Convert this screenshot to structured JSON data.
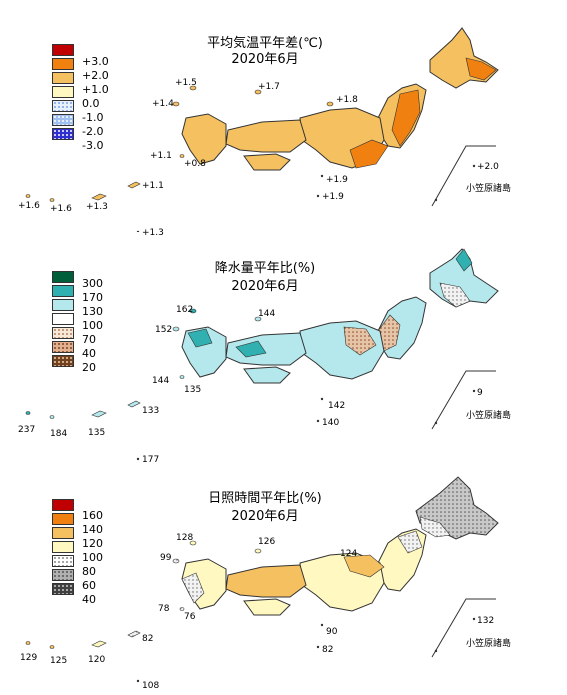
{
  "panels": [
    {
      "title_line1": "平均気温平年差(℃)",
      "title_line2": "2020年6月",
      "legend": [
        {
          "label": "+3.0",
          "color": "#c00000",
          "pattern": "solid"
        },
        {
          "label": "+2.0",
          "color": "#f08010",
          "pattern": "solid"
        },
        {
          "label": "+1.0",
          "color": "#f5c060",
          "pattern": "solid"
        },
        {
          "label": "0.0",
          "color": "#fff8c0",
          "pattern": "solid"
        },
        {
          "label": "-1.0",
          "color": "#e6f0ff",
          "pattern": "dots"
        },
        {
          "label": "-2.0",
          "color": "#9fc0f0",
          "pattern": "dots"
        },
        {
          "label": "-3.0",
          "color": "#3030d0",
          "pattern": "dots"
        }
      ],
      "values": {
        "v1": "+1.5",
        "v2": "+1.7",
        "v3": "+1.4",
        "v4": "+1.8",
        "v5": "+1.1",
        "v6": "+0.8",
        "v7": "+1.9",
        "v8": "+1.9",
        "v9": "+2.0",
        "v10": "+1.1",
        "v11": "+1.6",
        "v12": "+1.6",
        "v13": "+1.3",
        "v14": "+1.3"
      },
      "ogasawara": "小笠原諸島"
    },
    {
      "title_line1": "降水量平年比(%)",
      "title_line2": "2020年6月",
      "legend": [
        {
          "label": "300",
          "color": "#005f3a",
          "pattern": "solid"
        },
        {
          "label": "170",
          "color": "#30b0b0",
          "pattern": "solid"
        },
        {
          "label": "130",
          "color": "#b5e8ec",
          "pattern": "solid"
        },
        {
          "label": "100",
          "color": "#ffffff",
          "pattern": "solid"
        },
        {
          "label": "70",
          "color": "#f8e8d8",
          "pattern": "dots"
        },
        {
          "label": "40",
          "color": "#e0b090",
          "pattern": "dots"
        },
        {
          "label": "20",
          "color": "#704020",
          "pattern": "dots"
        }
      ],
      "values": {
        "v1": "162",
        "v2": "144",
        "v3": "152",
        "v4": "144",
        "v5": "135",
        "v6": "9",
        "v7": "142",
        "v8": "140",
        "v9": "133",
        "v10": "237",
        "v11": "184",
        "v12": "135",
        "v13": "177"
      },
      "ogasawara": "小笠原諸島"
    },
    {
      "title_line1": "日照時間平年比(%)",
      "title_line2": "2020年6月",
      "legend": [
        {
          "label": "160",
          "color": "#c00000",
          "pattern": "solid"
        },
        {
          "label": "140",
          "color": "#f08010",
          "pattern": "solid"
        },
        {
          "label": "120",
          "color": "#f5c060",
          "pattern": "solid"
        },
        {
          "label": "100",
          "color": "#fff8c0",
          "pattern": "solid"
        },
        {
          "label": "80",
          "color": "#ffffff",
          "pattern": "dots"
        },
        {
          "label": "60",
          "color": "#b0b0b0",
          "pattern": "dots"
        },
        {
          "label": "40",
          "color": "#404040",
          "pattern": "dots"
        }
      ],
      "values": {
        "v1": "128",
        "v2": "126",
        "v3": "99",
        "v4": "124",
        "v5": "78",
        "v6": "76",
        "v7": "132",
        "v8": "90",
        "v9": "82",
        "v10": "82",
        "v11": "129",
        "v12": "125",
        "v13": "120",
        "v14": "108"
      },
      "ogasawara": "小笠原諸島"
    }
  ]
}
